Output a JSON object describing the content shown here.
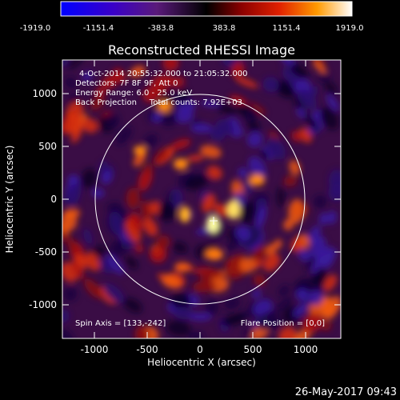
{
  "colorbar": {
    "ticks": [
      "-1919.0",
      "-1151.4",
      "-383.8",
      "383.8",
      "1151.4",
      "1919.0"
    ]
  },
  "plot": {
    "title": "Reconstructed RHESSI Image",
    "info_lines": [
      "4-Oct-2014 20:55:32.000 to 21:05:32.000",
      "Detectors: 7F 8F 9F, Att 0",
      "Energy Range: 6.0 - 25.0 keV",
      "Back Projection     Total counts: 7.92E+03"
    ],
    "spin_axis": "Spin Axis = [133,-242]",
    "flare_position": "Flare Position = [0,0]",
    "xlabel": "Heliocentric X (arcsec)",
    "ylabel": "Heliocentric Y (arcsec)",
    "x_ticks": [
      "-1000",
      "-500",
      "0",
      "500",
      "1000"
    ],
    "y_ticks": [
      "1000",
      "500",
      "0",
      "-500",
      "-1000"
    ]
  },
  "footer": {
    "timestamp": "26-May-2017 09:43"
  },
  "palette": {
    "background": "#000000",
    "foreground": "#ffffff",
    "min": "#0000ff",
    "mid": "#000000",
    "max": "#ffffff"
  }
}
